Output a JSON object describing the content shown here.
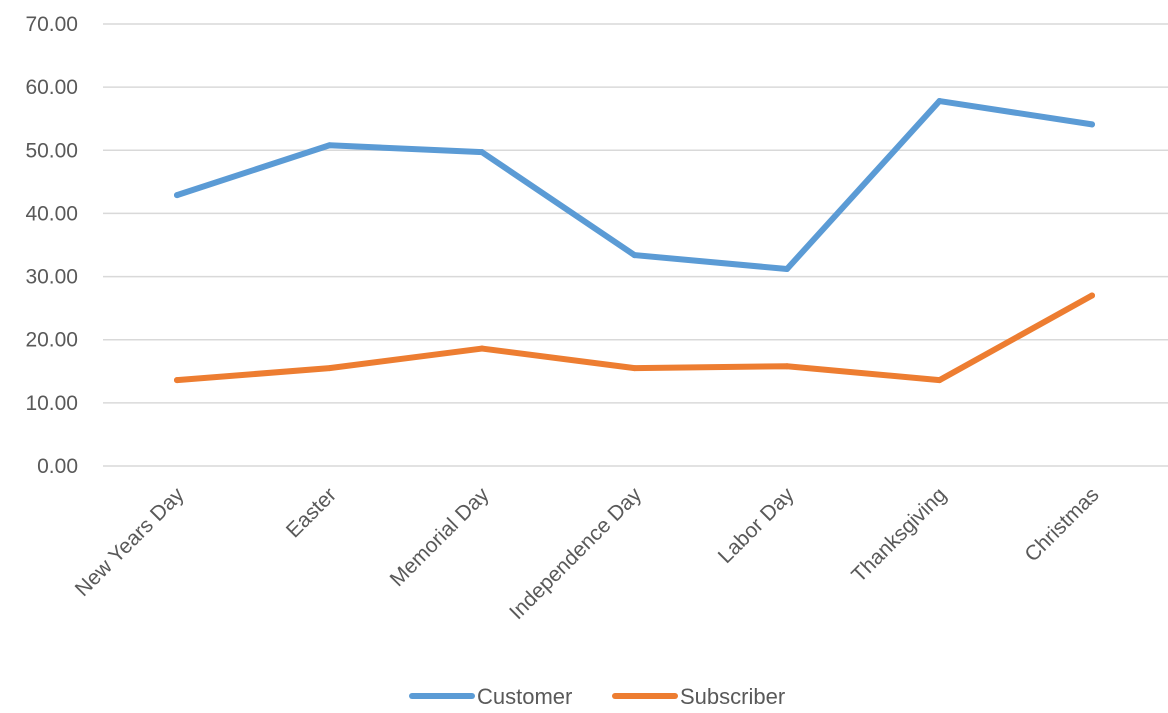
{
  "chart_data": {
    "type": "line",
    "categories": [
      "New Years Day",
      "Easter",
      "Memorial Day",
      "Independence Day",
      "Labor Day",
      "Thanksgiving",
      "Christmas"
    ],
    "series": [
      {
        "name": "Customer",
        "color": "#5b9bd5",
        "values": [
          42.9,
          50.8,
          49.7,
          33.4,
          31.2,
          57.8,
          54.1
        ]
      },
      {
        "name": "Subscriber",
        "color": "#ed7d31",
        "values": [
          13.6,
          15.5,
          18.6,
          15.5,
          15.8,
          13.6,
          27.0
        ]
      }
    ],
    "yticks": [
      "0.00",
      "10.00",
      "20.00",
      "30.00",
      "40.00",
      "50.00",
      "60.00",
      "70.00"
    ],
    "ylim": [
      0,
      70
    ],
    "grid": true,
    "legend": "bottom",
    "title": "",
    "xlabel": "",
    "ylabel": ""
  }
}
